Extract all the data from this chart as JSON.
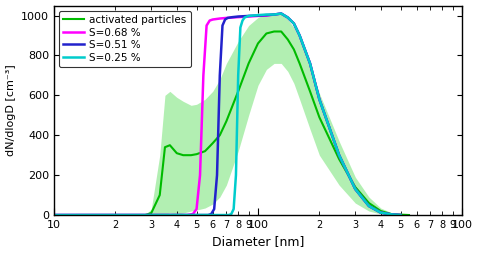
{
  "title": "",
  "xlabel": "Diameter [nm]",
  "ylabel": "dN/dlogD [cm⁻³]",
  "xlim": [
    10,
    1000
  ],
  "ylim": [
    0,
    1050
  ],
  "yticks": [
    0,
    200,
    400,
    600,
    800,
    1000
  ],
  "legend": [
    "activated particles",
    "S=0.68 %",
    "S=0.51 %",
    "S=0.25 %"
  ],
  "colors": {
    "activated": "#00bb00",
    "s068": "#ff00ff",
    "s051": "#2222cc",
    "s025": "#00cccc",
    "shade": "#55dd55"
  },
  "activated_mean": [
    [
      13,
      0
    ],
    [
      28,
      0
    ],
    [
      30,
      10
    ],
    [
      33,
      100
    ],
    [
      35,
      340
    ],
    [
      37,
      350
    ],
    [
      40,
      310
    ],
    [
      43,
      300
    ],
    [
      47,
      300
    ],
    [
      50,
      305
    ],
    [
      55,
      320
    ],
    [
      60,
      360
    ],
    [
      65,
      400
    ],
    [
      70,
      470
    ],
    [
      80,
      620
    ],
    [
      90,
      760
    ],
    [
      100,
      860
    ],
    [
      110,
      910
    ],
    [
      120,
      920
    ],
    [
      130,
      920
    ],
    [
      140,
      880
    ],
    [
      150,
      830
    ],
    [
      160,
      760
    ],
    [
      180,
      620
    ],
    [
      200,
      490
    ],
    [
      250,
      280
    ],
    [
      300,
      140
    ],
    [
      350,
      60
    ],
    [
      400,
      20
    ],
    [
      450,
      5
    ],
    [
      500,
      2
    ],
    [
      550,
      0
    ]
  ],
  "activated_upper": [
    [
      13,
      0
    ],
    [
      28,
      0
    ],
    [
      30,
      30
    ],
    [
      33,
      300
    ],
    [
      35,
      600
    ],
    [
      37,
      620
    ],
    [
      40,
      590
    ],
    [
      43,
      570
    ],
    [
      47,
      550
    ],
    [
      50,
      555
    ],
    [
      55,
      580
    ],
    [
      60,
      620
    ],
    [
      65,
      680
    ],
    [
      70,
      760
    ],
    [
      80,
      870
    ],
    [
      90,
      950
    ],
    [
      100,
      990
    ],
    [
      110,
      1010
    ],
    [
      120,
      1010
    ],
    [
      130,
      1010
    ],
    [
      140,
      980
    ],
    [
      150,
      940
    ],
    [
      160,
      880
    ],
    [
      180,
      750
    ],
    [
      200,
      610
    ],
    [
      250,
      370
    ],
    [
      300,
      190
    ],
    [
      350,
      90
    ],
    [
      400,
      35
    ],
    [
      450,
      12
    ],
    [
      500,
      3
    ],
    [
      550,
      0
    ]
  ],
  "activated_lower": [
    [
      13,
      0
    ],
    [
      28,
      0
    ],
    [
      30,
      0
    ],
    [
      33,
      0
    ],
    [
      35,
      5
    ],
    [
      37,
      10
    ],
    [
      40,
      5
    ],
    [
      43,
      10
    ],
    [
      47,
      20
    ],
    [
      50,
      25
    ],
    [
      55,
      35
    ],
    [
      60,
      55
    ],
    [
      65,
      90
    ],
    [
      70,
      150
    ],
    [
      80,
      320
    ],
    [
      90,
      500
    ],
    [
      100,
      650
    ],
    [
      110,
      730
    ],
    [
      120,
      760
    ],
    [
      130,
      760
    ],
    [
      140,
      720
    ],
    [
      150,
      660
    ],
    [
      160,
      580
    ],
    [
      180,
      430
    ],
    [
      200,
      300
    ],
    [
      250,
      150
    ],
    [
      300,
      60
    ],
    [
      350,
      20
    ],
    [
      400,
      5
    ],
    [
      450,
      1
    ],
    [
      500,
      0
    ],
    [
      550,
      0
    ]
  ],
  "s068": [
    [
      10,
      0
    ],
    [
      45,
      0
    ],
    [
      48,
      5
    ],
    [
      50,
      30
    ],
    [
      52,
      200
    ],
    [
      54,
      700
    ],
    [
      56,
      950
    ],
    [
      58,
      975
    ],
    [
      60,
      980
    ],
    [
      65,
      985
    ],
    [
      70,
      988
    ],
    [
      80,
      992
    ],
    [
      90,
      995
    ],
    [
      100,
      998
    ],
    [
      110,
      1000
    ],
    [
      120,
      1005
    ],
    [
      130,
      1010
    ],
    [
      140,
      990
    ],
    [
      150,
      960
    ],
    [
      160,
      900
    ],
    [
      180,
      760
    ],
    [
      200,
      580
    ],
    [
      250,
      300
    ],
    [
      300,
      130
    ],
    [
      350,
      45
    ],
    [
      400,
      12
    ],
    [
      450,
      3
    ],
    [
      500,
      0
    ]
  ],
  "s051": [
    [
      10,
      0
    ],
    [
      57,
      0
    ],
    [
      59,
      5
    ],
    [
      61,
      30
    ],
    [
      63,
      200
    ],
    [
      65,
      700
    ],
    [
      67,
      950
    ],
    [
      69,
      980
    ],
    [
      71,
      988
    ],
    [
      75,
      992
    ],
    [
      80,
      995
    ],
    [
      90,
      998
    ],
    [
      100,
      1000
    ],
    [
      110,
      1002
    ],
    [
      120,
      1005
    ],
    [
      130,
      1010
    ],
    [
      140,
      990
    ],
    [
      150,
      960
    ],
    [
      160,
      900
    ],
    [
      180,
      760
    ],
    [
      200,
      580
    ],
    [
      250,
      300
    ],
    [
      300,
      130
    ],
    [
      350,
      45
    ],
    [
      400,
      12
    ],
    [
      450,
      3
    ],
    [
      500,
      0
    ]
  ],
  "s025": [
    [
      10,
      0
    ],
    [
      72,
      0
    ],
    [
      74,
      5
    ],
    [
      76,
      30
    ],
    [
      78,
      200
    ],
    [
      80,
      700
    ],
    [
      82,
      940
    ],
    [
      84,
      975
    ],
    [
      86,
      990
    ],
    [
      90,
      998
    ],
    [
      95,
      1000
    ],
    [
      100,
      1002
    ],
    [
      110,
      1005
    ],
    [
      120,
      1005
    ],
    [
      130,
      1010
    ],
    [
      140,
      990
    ],
    [
      150,
      960
    ],
    [
      160,
      900
    ],
    [
      180,
      760
    ],
    [
      200,
      580
    ],
    [
      250,
      300
    ],
    [
      300,
      130
    ],
    [
      350,
      45
    ],
    [
      400,
      12
    ],
    [
      450,
      3
    ],
    [
      500,
      0
    ]
  ]
}
